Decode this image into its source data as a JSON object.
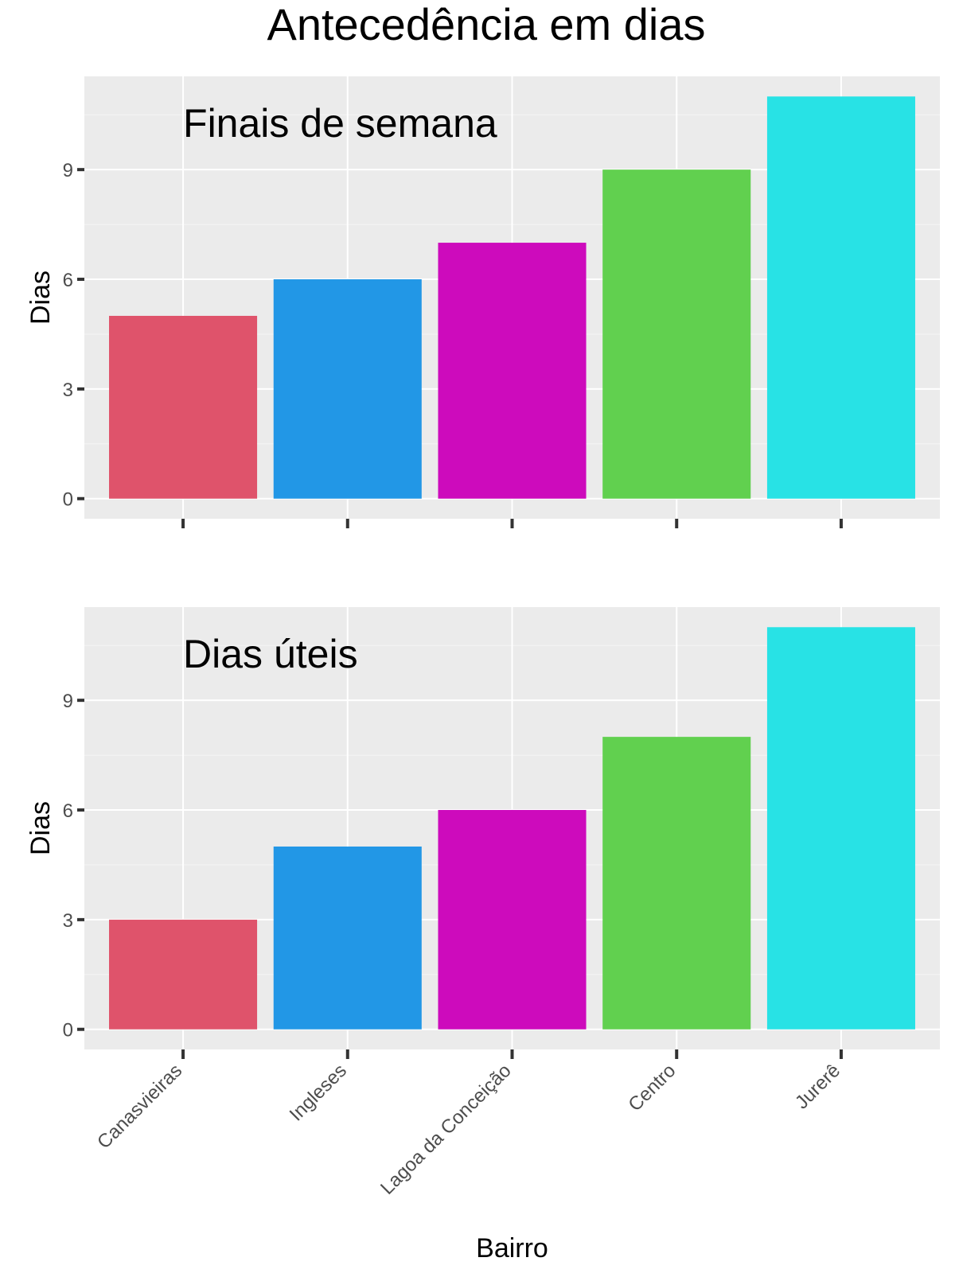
{
  "title": "Antecedência em dias",
  "chart_data": [
    {
      "type": "bar",
      "annotation": "Finais de semana",
      "categories": [
        "Canasvieiras",
        "Ingleses",
        "Lagoa da Conceição",
        "Centro",
        "Jurerê"
      ],
      "values": [
        5,
        6,
        7,
        9,
        11
      ],
      "colors": [
        "#df536b",
        "#2297e6",
        "#cd0bbc",
        "#61d04f",
        "#28e2e5"
      ],
      "ylabel": "Dias",
      "xlabel": "",
      "yticks": [
        0,
        3,
        6,
        9
      ],
      "ylim": [
        -0.55,
        11.55
      ],
      "show_x_tick_labels": false,
      "grid": true,
      "legend": "none"
    },
    {
      "type": "bar",
      "annotation": "Dias úteis",
      "categories": [
        "Canasvieiras",
        "Ingleses",
        "Lagoa da Conceição",
        "Centro",
        "Jurerê"
      ],
      "values": [
        3,
        5,
        6,
        8,
        11
      ],
      "colors": [
        "#df536b",
        "#2297e6",
        "#cd0bbc",
        "#61d04f",
        "#28e2e5"
      ],
      "ylabel": "Dias",
      "xlabel": "Bairro",
      "yticks": [
        0,
        3,
        6,
        9
      ],
      "ylim": [
        -0.55,
        11.55
      ],
      "show_x_tick_labels": true,
      "grid": true,
      "legend": "none"
    }
  ]
}
